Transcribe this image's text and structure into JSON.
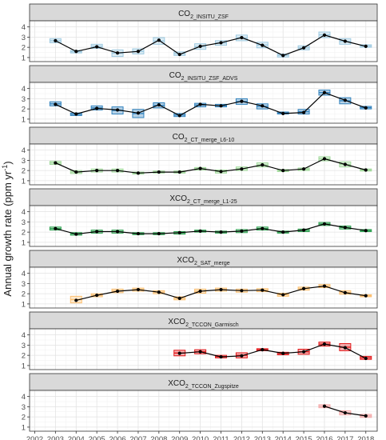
{
  "chart_data": {
    "type": "line",
    "ylabel": "Annual growth rate (ppm yr⁻¹)",
    "ylabel_main": "Annual growth rate (ppm yr",
    "ylabel_sup": "-1",
    "ylabel_close": ")",
    "x_ticks": [
      "2002",
      "2003",
      "2004",
      "2005",
      "2006",
      "2007",
      "2008",
      "2009",
      "2010",
      "2011",
      "2012",
      "2013",
      "2014",
      "2015",
      "2016",
      "2017",
      "2018"
    ],
    "x_range": [
      2001.75,
      2018.55
    ],
    "ylim": [
      0.6,
      4.6
    ],
    "y_ticks": [
      "1",
      "2",
      "3",
      "4"
    ],
    "grid": true,
    "panels": [
      {
        "title_main": "CO",
        "title_sub": "2_INSITU_ZSF",
        "color": "#9ecae1",
        "x": [
          2003,
          2004,
          2005,
          2006,
          2007,
          2008,
          2009,
          2010,
          2011,
          2012,
          2013,
          2014,
          2015,
          2016,
          2017,
          2018
        ],
        "y": [
          2.65,
          1.6,
          2.05,
          1.45,
          1.6,
          2.7,
          1.3,
          2.1,
          2.45,
          2.95,
          2.2,
          1.2,
          1.95,
          3.2,
          2.6,
          2.1
        ],
        "boxes": [
          [
            2.45,
            2.85
          ],
          [
            1.45,
            1.7
          ],
          [
            1.9,
            2.3
          ],
          [
            1.1,
            1.75
          ],
          [
            1.35,
            1.85
          ],
          [
            2.3,
            2.95
          ],
          [
            1.2,
            1.55
          ],
          [
            1.8,
            2.35
          ],
          [
            2.2,
            2.65
          ],
          [
            2.65,
            3.2
          ],
          [
            1.95,
            2.5
          ],
          [
            1.05,
            1.35
          ],
          [
            1.75,
            2.15
          ],
          [
            2.95,
            3.5
          ],
          [
            2.3,
            2.85
          ],
          [
            2.0,
            2.25
          ]
        ]
      },
      {
        "title_main": "CO",
        "title_sub": "2_INSITU_ZSF_ADVS",
        "color": "#3182bd",
        "x": [
          2003,
          2004,
          2005,
          2006,
          2007,
          2008,
          2009,
          2010,
          2011,
          2012,
          2013,
          2014,
          2015,
          2016,
          2017,
          2018
        ],
        "y": [
          2.45,
          1.5,
          2.05,
          1.9,
          1.6,
          2.4,
          1.35,
          2.45,
          2.3,
          2.75,
          2.3,
          1.55,
          1.65,
          3.6,
          2.85,
          2.1
        ],
        "boxes": [
          [
            2.3,
            2.7
          ],
          [
            1.35,
            1.6
          ],
          [
            1.9,
            2.3
          ],
          [
            1.5,
            2.2
          ],
          [
            1.15,
            1.95
          ],
          [
            2.1,
            2.6
          ],
          [
            1.25,
            1.55
          ],
          [
            2.2,
            2.55
          ],
          [
            2.2,
            2.45
          ],
          [
            2.45,
            3.0
          ],
          [
            2.0,
            2.5
          ],
          [
            1.5,
            1.7
          ],
          [
            1.5,
            1.95
          ],
          [
            3.35,
            3.85
          ],
          [
            2.5,
            3.1
          ],
          [
            2.0,
            2.25
          ]
        ]
      },
      {
        "title_main": "CO",
        "title_sub": "2_CT_merge_L6-10",
        "color": "#a1d99b",
        "x": [
          2003,
          2004,
          2005,
          2006,
          2007,
          2008,
          2009,
          2010,
          2011,
          2012,
          2013,
          2014,
          2015,
          2016,
          2017,
          2018
        ],
        "y": [
          2.75,
          1.85,
          2.0,
          2.0,
          1.75,
          1.85,
          1.85,
          2.2,
          1.9,
          2.15,
          2.55,
          2.0,
          2.15,
          3.15,
          2.6,
          2.05
        ],
        "boxes": [
          [
            2.6,
            2.9
          ],
          [
            1.7,
            2.0
          ],
          [
            1.85,
            2.15
          ],
          [
            1.85,
            2.15
          ],
          [
            1.65,
            1.85
          ],
          [
            1.75,
            1.95
          ],
          [
            1.75,
            1.95
          ],
          [
            2.05,
            2.3
          ],
          [
            1.75,
            2.05
          ],
          [
            2.0,
            2.35
          ],
          [
            2.35,
            2.75
          ],
          [
            1.9,
            2.1
          ],
          [
            2.0,
            2.25
          ],
          [
            2.95,
            3.35
          ],
          [
            2.35,
            2.85
          ],
          [
            1.95,
            2.15
          ]
        ]
      },
      {
        "title_main": "XCO",
        "title_sub": "2_CT_merge_L1-25",
        "color": "#31a354",
        "x": [
          2003,
          2004,
          2005,
          2006,
          2007,
          2008,
          2009,
          2010,
          2011,
          2012,
          2013,
          2014,
          2015,
          2016,
          2017,
          2018
        ],
        "y": [
          2.35,
          1.8,
          2.05,
          2.05,
          1.85,
          1.85,
          1.95,
          2.1,
          2.0,
          2.1,
          2.35,
          2.0,
          2.2,
          2.8,
          2.45,
          2.15
        ],
        "boxes": [
          [
            2.2,
            2.5
          ],
          [
            1.7,
            1.95
          ],
          [
            1.9,
            2.2
          ],
          [
            1.9,
            2.2
          ],
          [
            1.75,
            1.95
          ],
          [
            1.75,
            1.95
          ],
          [
            1.8,
            2.05
          ],
          [
            2.0,
            2.2
          ],
          [
            1.9,
            2.1
          ],
          [
            1.95,
            2.25
          ],
          [
            2.2,
            2.5
          ],
          [
            1.9,
            2.1
          ],
          [
            2.05,
            2.3
          ],
          [
            2.65,
            2.95
          ],
          [
            2.3,
            2.6
          ],
          [
            2.05,
            2.25
          ]
        ]
      },
      {
        "title_main": "XCO",
        "title_sub": "2_SAT_merge",
        "color": "#fdbf6f",
        "x": [
          2004,
          2005,
          2006,
          2007,
          2008,
          2009,
          2010,
          2011,
          2012,
          2013,
          2014,
          2015,
          2016,
          2017,
          2018
        ],
        "y": [
          1.35,
          1.85,
          2.25,
          2.4,
          2.15,
          1.55,
          2.25,
          2.4,
          2.3,
          2.35,
          1.9,
          2.5,
          2.75,
          2.1,
          1.8
        ],
        "boxes": [
          [
            1.1,
            1.75
          ],
          [
            1.7,
            2.0
          ],
          [
            2.1,
            2.45
          ],
          [
            2.25,
            2.55
          ],
          [
            2.0,
            2.3
          ],
          [
            1.4,
            1.7
          ],
          [
            2.05,
            2.45
          ],
          [
            2.25,
            2.55
          ],
          [
            2.15,
            2.45
          ],
          [
            2.2,
            2.5
          ],
          [
            1.75,
            2.05
          ],
          [
            2.35,
            2.65
          ],
          [
            2.6,
            2.9
          ],
          [
            1.95,
            2.3
          ],
          [
            1.7,
            1.9
          ]
        ]
      },
      {
        "title_main": "XCO",
        "title_sub": "2_TCCON_Garmisch",
        "color": "#e31a1c",
        "x": [
          2009,
          2010,
          2011,
          2012,
          2013,
          2014,
          2015,
          2016,
          2017,
          2018
        ],
        "y": [
          2.2,
          2.35,
          1.85,
          1.95,
          2.55,
          2.2,
          2.35,
          3.1,
          2.75,
          1.7
        ],
        "boxes": [
          [
            1.95,
            2.5
          ],
          [
            2.15,
            2.55
          ],
          [
            1.75,
            2.0
          ],
          [
            1.75,
            2.25
          ],
          [
            2.45,
            2.65
          ],
          [
            2.05,
            2.3
          ],
          [
            2.1,
            2.6
          ],
          [
            2.9,
            3.3
          ],
          [
            2.45,
            3.15
          ],
          [
            1.6,
            1.9
          ]
        ]
      },
      {
        "title_main": "XCO",
        "title_sub": "2_TCCON_Zugspitze",
        "color": "#f4a6a6",
        "x": [
          2016,
          2017,
          2018
        ],
        "y": [
          3.05,
          2.4,
          2.1
        ],
        "boxes": [
          [
            2.9,
            3.2
          ],
          [
            2.2,
            2.6
          ],
          [
            1.95,
            2.25
          ]
        ]
      }
    ]
  }
}
